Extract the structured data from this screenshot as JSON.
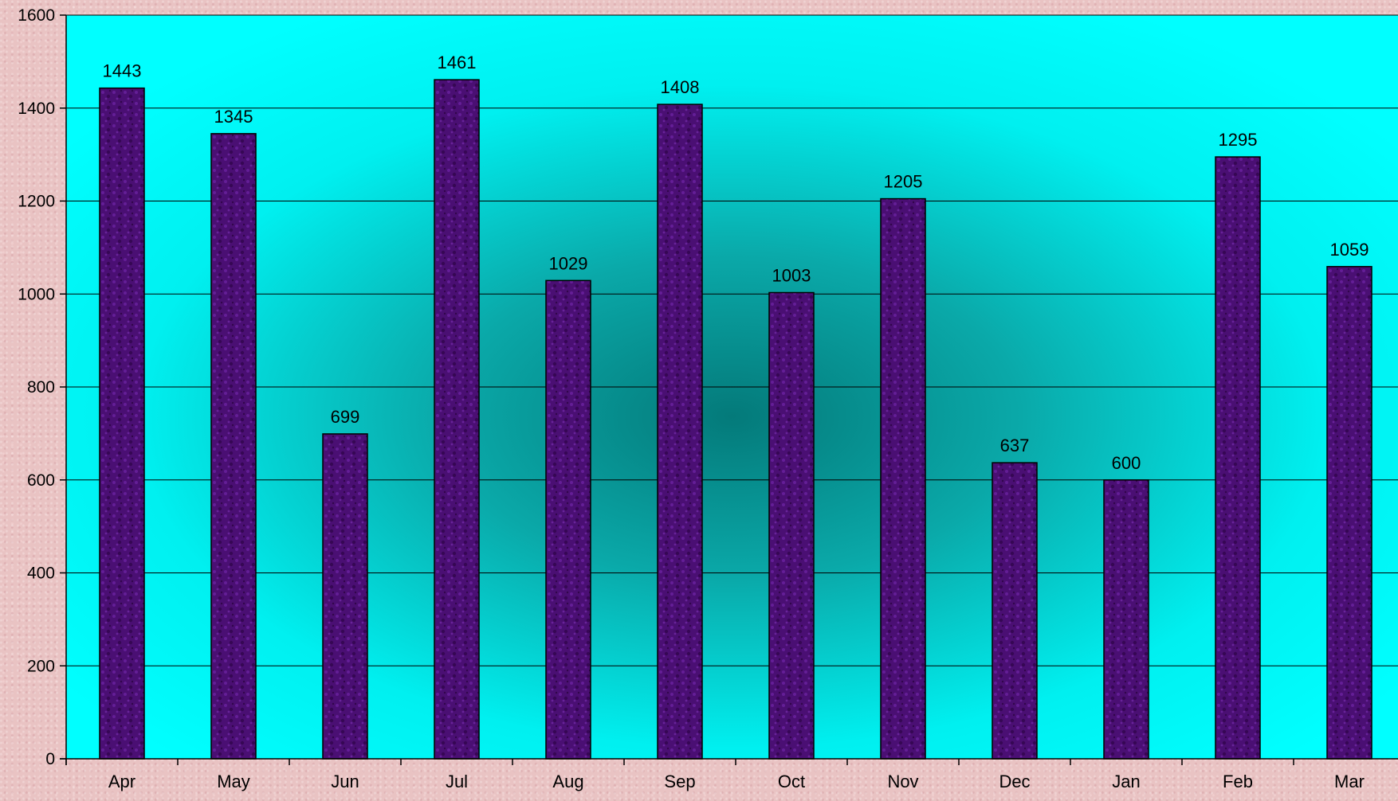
{
  "chart_data": {
    "type": "bar",
    "categories": [
      "Apr",
      "May",
      "Jun",
      "Jul",
      "Aug",
      "Sep",
      "Oct",
      "Nov",
      "Dec",
      "Jan",
      "Feb",
      "Mar"
    ],
    "values": [
      1443,
      1345,
      699,
      1461,
      1029,
      1408,
      1003,
      1205,
      637,
      600,
      1295,
      1059
    ],
    "ylim": [
      0,
      1600
    ],
    "y_ticks": [
      "0",
      "200",
      "400",
      "600",
      "800",
      "1000",
      "1200",
      "1400",
      "1600"
    ],
    "grid": true,
    "data_labels": true,
    "legend": "none",
    "colors": {
      "bar": "#4a0f73",
      "plot_background": "#00ffff",
      "plot_center": "#058a8a",
      "page_background": "#e9c3c3"
    }
  }
}
